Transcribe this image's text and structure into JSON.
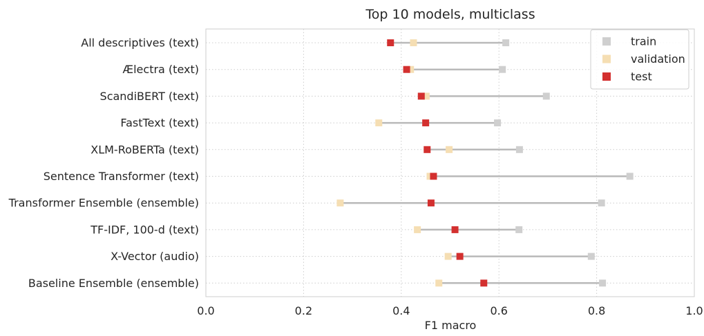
{
  "chart_data": {
    "type": "scatter",
    "title": "Top 10 models, multiclass",
    "xlabel": "F1 macro",
    "ylabel": "",
    "xlim": [
      0.0,
      1.0
    ],
    "xticks": [
      "0.0",
      "0.2",
      "0.4",
      "0.6",
      "0.8",
      "1.0"
    ],
    "grid": true,
    "legend_position": "top-right",
    "categories": [
      "All descriptives (text)",
      "Ælectra (text)",
      "ScandiBERT (text)",
      "FastText (text)",
      "XLM-RoBERTa (text)",
      "Sentence Transformer (text)",
      "Transformer Ensemble (ensemble)",
      "TF-IDF, 100-d (text)",
      "X-Vector (audio)",
      "Baseline Ensemble (ensemble)"
    ],
    "series": [
      {
        "name": "train",
        "color": "#cfcfcf",
        "values": [
          0.614,
          0.607,
          0.697,
          0.597,
          0.642,
          0.868,
          0.81,
          0.641,
          0.789,
          0.812
        ]
      },
      {
        "name": "validation",
        "color": "#f5deb3",
        "values": [
          0.425,
          0.419,
          0.451,
          0.354,
          0.498,
          0.459,
          0.275,
          0.433,
          0.496,
          0.477
        ]
      },
      {
        "name": "test",
        "color": "#d3302f",
        "values": [
          0.378,
          0.411,
          0.441,
          0.45,
          0.453,
          0.466,
          0.461,
          0.51,
          0.52,
          0.569
        ]
      }
    ]
  }
}
